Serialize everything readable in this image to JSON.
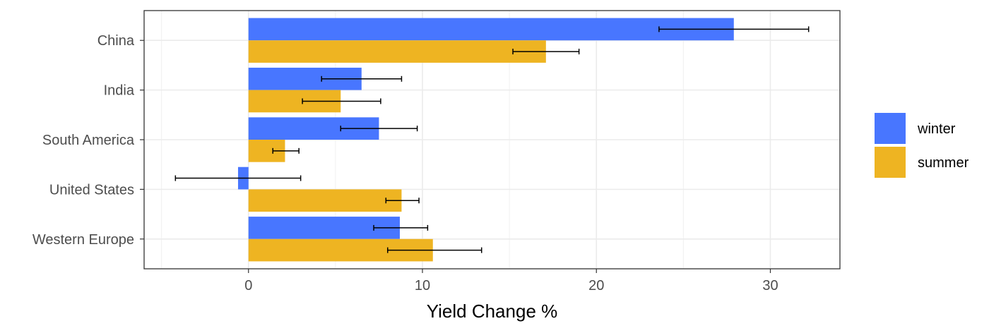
{
  "chart_data": {
    "type": "bar",
    "orientation": "horizontal",
    "categories": [
      "China",
      "India",
      "South America",
      "United States",
      "Western Europe"
    ],
    "series": [
      {
        "name": "winter",
        "color": "#4876FF",
        "values": [
          27.9,
          6.5,
          7.5,
          -0.6,
          8.7
        ],
        "error_low": [
          23.6,
          4.2,
          5.3,
          -4.2,
          7.2
        ],
        "error_high": [
          32.2,
          8.8,
          9.7,
          3.0,
          10.3
        ]
      },
      {
        "name": "summer",
        "color": "#EEB422",
        "values": [
          17.1,
          5.3,
          2.1,
          8.8,
          10.6
        ],
        "error_low": [
          15.2,
          3.1,
          1.4,
          7.9,
          8.0
        ],
        "error_high": [
          19.0,
          7.6,
          2.9,
          9.8,
          13.4
        ]
      }
    ],
    "x_ticks": [
      0,
      10,
      20,
      30
    ],
    "xlim": [
      -6,
      34
    ],
    "xlabel": "Yield Change %",
    "ylabel": "",
    "grid": true,
    "legend_position": "right"
  }
}
